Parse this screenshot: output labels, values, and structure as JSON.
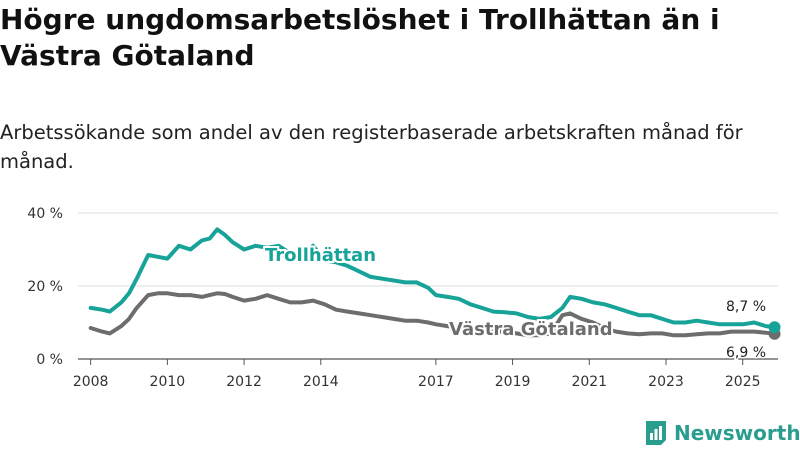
{
  "title": "Högre ungdomsarbetslöshet i Trollhättan än i Västra Götaland",
  "subtitle": "Arbetssökande som andel av den registerbaserade arbetskraften månad för månad.",
  "brand": {
    "name": "Newsworthy",
    "color": "#2a9d8f"
  },
  "chart_data": {
    "type": "line",
    "ylim": [
      0,
      40
    ],
    "xlim": [
      2007.67,
      2025.92
    ],
    "yticks": [
      {
        "value": 0,
        "label": "0 %"
      },
      {
        "value": 20,
        "label": "20 %"
      },
      {
        "value": 40,
        "label": "40 %"
      }
    ],
    "xticks": [
      {
        "value": 2008,
        "label": "2008"
      },
      {
        "value": 2010,
        "label": "2010"
      },
      {
        "value": 2012,
        "label": "2012"
      },
      {
        "value": 2014,
        "label": "2014"
      },
      {
        "value": 2017,
        "label": "2017"
      },
      {
        "value": 2019,
        "label": "2019"
      },
      {
        "value": 2021,
        "label": "2021"
      },
      {
        "value": 2023,
        "label": "2023"
      },
      {
        "value": 2025,
        "label": "2025"
      }
    ],
    "series": [
      {
        "name": "Trollhättan",
        "color": "#17a398",
        "last_label": "8,7 %",
        "x": [
          2008.0,
          2008.3,
          2008.5,
          2008.8,
          2009.0,
          2009.2,
          2009.5,
          2009.75,
          2010.0,
          2010.3,
          2010.6,
          2010.9,
          2011.1,
          2011.3,
          2011.5,
          2011.7,
          2012.0,
          2012.3,
          2012.6,
          2012.9,
          2013.2,
          2013.5,
          2013.8,
          2014.1,
          2014.4,
          2014.7,
          2015.0,
          2015.3,
          2015.6,
          2015.9,
          2016.2,
          2016.5,
          2016.8,
          2017.0,
          2017.3,
          2017.6,
          2017.9,
          2018.2,
          2018.5,
          2018.8,
          2019.1,
          2019.4,
          2019.7,
          2020.0,
          2020.3,
          2020.5,
          2020.8,
          2021.1,
          2021.4,
          2021.7,
          2022.0,
          2022.3,
          2022.6,
          2022.9,
          2023.2,
          2023.5,
          2023.8,
          2024.1,
          2024.4,
          2024.7,
          2025.0,
          2025.3,
          2025.6,
          2025.83
        ],
        "values": [
          14.0,
          13.5,
          13.0,
          15.5,
          18.0,
          22.0,
          28.5,
          28.0,
          27.5,
          31.0,
          30.0,
          32.5,
          33.0,
          35.5,
          34.0,
          32.0,
          30.0,
          31.0,
          30.5,
          31.0,
          29.0,
          28.5,
          31.0,
          27.0,
          26.5,
          25.5,
          24.0,
          22.5,
          22.0,
          21.5,
          21.0,
          21.0,
          19.5,
          17.5,
          17.0,
          16.5,
          15.0,
          14.0,
          13.0,
          12.8,
          12.5,
          11.5,
          11.0,
          11.5,
          14.0,
          17.0,
          16.5,
          15.5,
          15.0,
          14.0,
          13.0,
          12.0,
          12.0,
          11.0,
          10.0,
          10.0,
          10.5,
          10.0,
          9.5,
          9.5,
          9.5,
          10.0,
          9.0,
          8.7
        ]
      },
      {
        "name": "Västra Götaland",
        "color": "#6d6d6d",
        "last_label": "6,9 %",
        "x": [
          2008.0,
          2008.3,
          2008.5,
          2008.8,
          2009.0,
          2009.2,
          2009.5,
          2009.75,
          2010.0,
          2010.3,
          2010.6,
          2010.9,
          2011.1,
          2011.3,
          2011.5,
          2011.7,
          2012.0,
          2012.3,
          2012.6,
          2012.9,
          2013.2,
          2013.5,
          2013.8,
          2014.1,
          2014.4,
          2014.7,
          2015.0,
          2015.3,
          2015.6,
          2015.9,
          2016.2,
          2016.5,
          2016.8,
          2017.0,
          2017.3,
          2017.6,
          2017.9,
          2018.2,
          2018.5,
          2018.8,
          2019.1,
          2019.4,
          2019.7,
          2020.0,
          2020.3,
          2020.5,
          2020.8,
          2021.1,
          2021.4,
          2021.7,
          2022.0,
          2022.3,
          2022.6,
          2022.9,
          2023.2,
          2023.5,
          2023.8,
          2024.1,
          2024.4,
          2024.7,
          2025.0,
          2025.3,
          2025.6,
          2025.83
        ],
        "values": [
          8.5,
          7.5,
          7.0,
          9.0,
          11.0,
          14.0,
          17.5,
          18.0,
          18.0,
          17.5,
          17.5,
          17.0,
          17.5,
          18.0,
          17.8,
          17.0,
          16.0,
          16.5,
          17.5,
          16.5,
          15.5,
          15.5,
          16.0,
          15.0,
          13.5,
          13.0,
          12.5,
          12.0,
          11.5,
          11.0,
          10.5,
          10.5,
          10.0,
          9.5,
          9.0,
          8.5,
          8.0,
          7.8,
          7.5,
          7.5,
          7.0,
          6.5,
          6.5,
          7.0,
          12.0,
          12.5,
          11.0,
          10.0,
          8.5,
          7.5,
          7.0,
          6.8,
          7.0,
          7.0,
          6.5,
          6.5,
          6.8,
          7.0,
          7.0,
          7.5,
          7.5,
          7.5,
          7.2,
          6.9
        ]
      }
    ]
  }
}
